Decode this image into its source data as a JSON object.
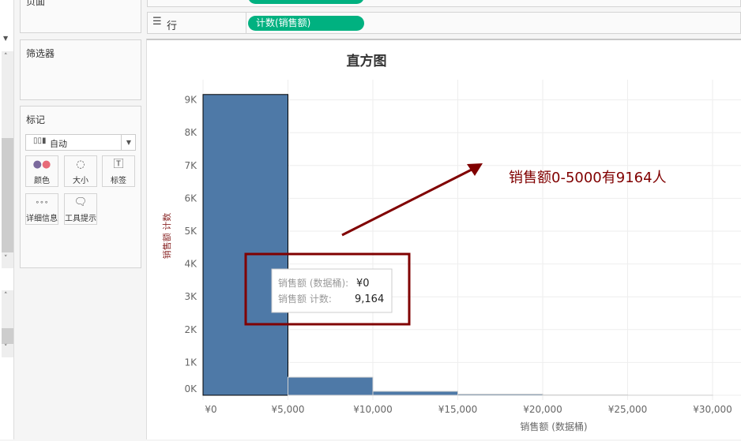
{
  "pages_card": {
    "title": "页面"
  },
  "filters_card": {
    "title": "筛选器"
  },
  "marks_card": {
    "title": "标记",
    "mark_type": "自动",
    "buttons": [
      {
        "label": "颜色",
        "icon": "color-dots-icon"
      },
      {
        "label": "大小",
        "icon": "size-icon"
      },
      {
        "label": "标签",
        "icon": "text-label-icon"
      },
      {
        "label": "详细信息",
        "icon": "detail-icon"
      },
      {
        "label": "工具提示",
        "icon": "tooltip-icon"
      }
    ]
  },
  "shelves": {
    "rows_label": "行",
    "rows_pill": "计数(销售额)"
  },
  "colors": {
    "bar": "#4e79a7",
    "pill": "#00b180",
    "annotation": "#800000"
  },
  "annotation": {
    "text": "销售额0-5000有9164人"
  },
  "tooltip": {
    "row1_label": "销售额 (数据桶):",
    "row1_value": "¥0",
    "row2_label": "销售额 计数:",
    "row2_value": "9,164"
  },
  "chart_data": {
    "type": "bar",
    "title": "直方图",
    "xlabel": "销售额 (数据桶)",
    "ylabel": "销售额 计数",
    "bin_size": 5000,
    "bins": [
      0,
      5000,
      10000,
      15000,
      20000,
      25000
    ],
    "values": [
      9164,
      550,
      120,
      35,
      10,
      2
    ],
    "xticks": [
      "¥0",
      "¥5,000",
      "¥10,000",
      "¥15,000",
      "¥20,000",
      "¥25,000",
      "¥30,000"
    ],
    "yticks": [
      "0K",
      "1K",
      "2K",
      "3K",
      "4K",
      "5K",
      "6K",
      "7K",
      "8K",
      "9K"
    ],
    "ylim": [
      0,
      9600
    ],
    "grid": true
  }
}
